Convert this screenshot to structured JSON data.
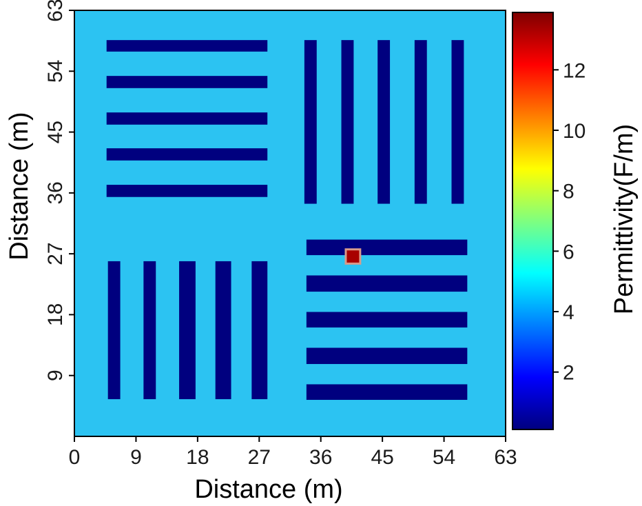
{
  "chart_data": {
    "type": "heatmap",
    "title": "",
    "xlabel": "Distance (m)",
    "ylabel": "Distance (m)",
    "xlim": [
      0,
      63
    ],
    "ylim": [
      0,
      63
    ],
    "xticks": [
      0,
      9,
      18,
      27,
      36,
      45,
      54,
      63
    ],
    "yticks": [
      9,
      18,
      27,
      36,
      45,
      54,
      63
    ],
    "background_value": 4.3,
    "background_color": "#2cc3f2",
    "bar_color": "#00007f",
    "bars": [
      {
        "group": "top-left-horizontal",
        "x0": 4.7,
        "x1": 28.2,
        "y0": 56.9,
        "y1": 58.6,
        "value": 0.3
      },
      {
        "group": "top-left-horizontal",
        "x0": 4.7,
        "x1": 28.2,
        "y0": 51.5,
        "y1": 53.3,
        "value": 0.3
      },
      {
        "group": "top-left-horizontal",
        "x0": 4.7,
        "x1": 28.2,
        "y0": 46.1,
        "y1": 47.9,
        "value": 0.3
      },
      {
        "group": "top-left-horizontal",
        "x0": 4.7,
        "x1": 28.2,
        "y0": 40.8,
        "y1": 42.6,
        "value": 0.3
      },
      {
        "group": "top-left-horizontal",
        "x0": 4.7,
        "x1": 28.2,
        "y0": 35.4,
        "y1": 37.2,
        "value": 0.3
      },
      {
        "group": "top-right-vertical",
        "x0": 33.6,
        "x1": 35.4,
        "y0": 34.4,
        "y1": 58.6,
        "value": 0.3
      },
      {
        "group": "top-right-vertical",
        "x0": 39.0,
        "x1": 40.8,
        "y0": 34.4,
        "y1": 58.6,
        "value": 0.3
      },
      {
        "group": "top-right-vertical",
        "x0": 44.3,
        "x1": 46.1,
        "y0": 34.4,
        "y1": 58.6,
        "value": 0.3
      },
      {
        "group": "top-right-vertical",
        "x0": 49.7,
        "x1": 51.5,
        "y0": 34.4,
        "y1": 58.6,
        "value": 0.3
      },
      {
        "group": "top-right-vertical",
        "x0": 55.1,
        "x1": 56.9,
        "y0": 34.4,
        "y1": 58.6,
        "value": 0.3
      },
      {
        "group": "bottom-left-vertical",
        "x0": 4.9,
        "x1": 6.7,
        "y0": 5.5,
        "y1": 25.9,
        "value": 0.3
      },
      {
        "group": "bottom-left-vertical",
        "x0": 10.1,
        "x1": 11.9,
        "y0": 5.5,
        "y1": 25.9,
        "value": 0.3
      },
      {
        "group": "bottom-left-vertical",
        "x0": 15.3,
        "x1": 17.7,
        "y0": 5.5,
        "y1": 25.9,
        "value": 0.3
      },
      {
        "group": "bottom-left-vertical",
        "x0": 20.6,
        "x1": 22.9,
        "y0": 5.5,
        "y1": 25.9,
        "value": 0.3
      },
      {
        "group": "bottom-left-vertical",
        "x0": 25.9,
        "x1": 28.2,
        "y0": 5.5,
        "y1": 25.9,
        "value": 0.3
      },
      {
        "group": "bottom-right-horizontal",
        "x0": 33.9,
        "x1": 57.4,
        "y0": 26.8,
        "y1": 29.1,
        "value": 0.3
      },
      {
        "group": "bottom-right-horizontal",
        "x0": 33.9,
        "x1": 57.4,
        "y0": 21.4,
        "y1": 23.8,
        "value": 0.3
      },
      {
        "group": "bottom-right-horizontal",
        "x0": 33.9,
        "x1": 57.4,
        "y0": 16.1,
        "y1": 18.4,
        "value": 0.3
      },
      {
        "group": "bottom-right-horizontal",
        "x0": 33.9,
        "x1": 57.4,
        "y0": 10.7,
        "y1": 13.1,
        "value": 0.3
      },
      {
        "group": "bottom-right-horizontal",
        "x0": 33.9,
        "x1": 57.4,
        "y0": 5.4,
        "y1": 7.7,
        "value": 0.3
      }
    ],
    "anomaly": {
      "x0": 39.8,
      "x1": 41.6,
      "y0": 25.7,
      "y1": 27.5,
      "value": 12.5,
      "color": "#a80000",
      "rim_color": "#d99a8a"
    },
    "colorbar": {
      "label": "Permittivity(F/m)",
      "range": [
        0.1,
        13.9
      ],
      "ticks": [
        2,
        4,
        6,
        8,
        10,
        12
      ],
      "colors": [
        "#00007f",
        "#0000ff",
        "#007fff",
        "#00ffff",
        "#7fff7f",
        "#ffff00",
        "#ff7f00",
        "#ff0000",
        "#7f0000"
      ],
      "placement": "right"
    }
  }
}
